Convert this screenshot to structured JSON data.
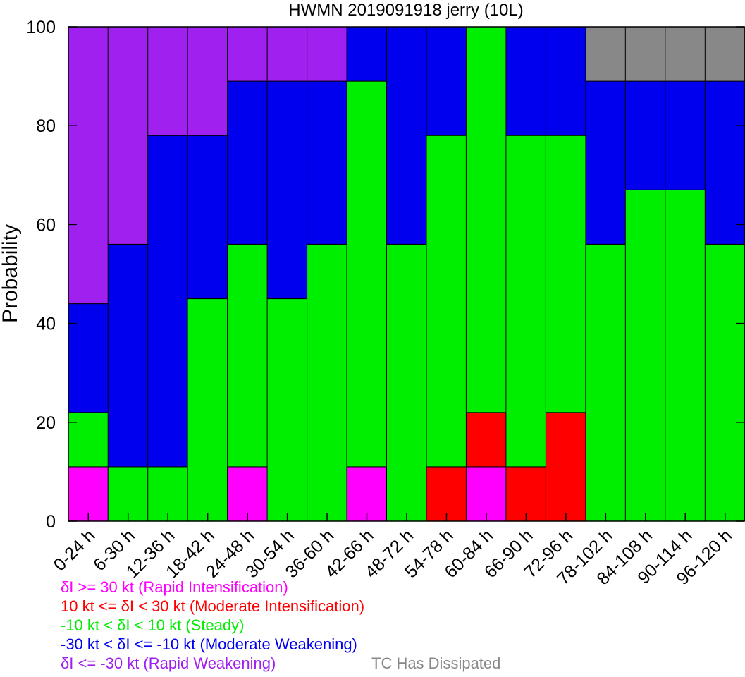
{
  "chart_data": {
    "type": "bar",
    "stacked": true,
    "title": "HWMN 2019091918 jerry (10L)",
    "xlabel": "",
    "ylabel": "Probability",
    "ylim": [
      0,
      100
    ],
    "yticks": [
      0,
      20,
      40,
      60,
      80,
      100
    ],
    "grid": false,
    "categories": [
      "0-24 h",
      "6-30 h",
      "12-36 h",
      "18-42 h",
      "24-48 h",
      "30-54 h",
      "36-60 h",
      "42-66 h",
      "48-72 h",
      "54-78 h",
      "60-84 h",
      "66-90 h",
      "72-96 h",
      "78-102 h",
      "84-108 h",
      "90-114 h",
      "96-120 h"
    ],
    "series": [
      {
        "color": "#ff00ff",
        "values": [
          11,
          0,
          0,
          0,
          11,
          0,
          0,
          11,
          0,
          0,
          11,
          0,
          0,
          0,
          0,
          0,
          0
        ]
      },
      {
        "color": "#ff0000",
        "values": [
          0,
          0,
          0,
          0,
          0,
          0,
          0,
          0,
          0,
          11,
          11,
          11,
          22,
          0,
          0,
          0,
          0
        ]
      },
      {
        "color": "#00ee00",
        "values": [
          11,
          11,
          11,
          45,
          45,
          45,
          56,
          78,
          56,
          67,
          78,
          67,
          56,
          56,
          67,
          67,
          56
        ]
      },
      {
        "color": "#0000ee",
        "values": [
          22,
          45,
          67,
          33,
          33,
          44,
          33,
          11,
          44,
          22,
          0,
          22,
          22,
          33,
          22,
          22,
          33
        ]
      },
      {
        "color": "#a020f0",
        "values": [
          56,
          44,
          22,
          22,
          11,
          11,
          11,
          0,
          0,
          0,
          0,
          0,
          0,
          0,
          0,
          0,
          0
        ]
      },
      {
        "color": "#888888",
        "values": [
          0,
          0,
          0,
          0,
          0,
          0,
          0,
          0,
          0,
          0,
          0,
          0,
          0,
          11,
          11,
          11,
          11
        ]
      }
    ],
    "legend": {
      "placement": "bottom",
      "items": [
        {
          "text": "δI >= 30 kt (Rapid Intensification)",
          "color": "#ff00ff"
        },
        {
          "text": "10 kt <= δI < 30 kt (Moderate Intensification)",
          "color": "#ff0000"
        },
        {
          "text": "-10 kt < δI < 10 kt (Steady)",
          "color": "#00ee00"
        },
        {
          "text": "-30 kt < δI <= -10 kt (Moderate Weakening)",
          "color": "#0000ee"
        },
        {
          "text": "δI <= -30 kt (Rapid Weakening)",
          "color": "#a020f0"
        },
        {
          "text": "TC Has Dissipated",
          "color": "#888888"
        }
      ]
    }
  }
}
